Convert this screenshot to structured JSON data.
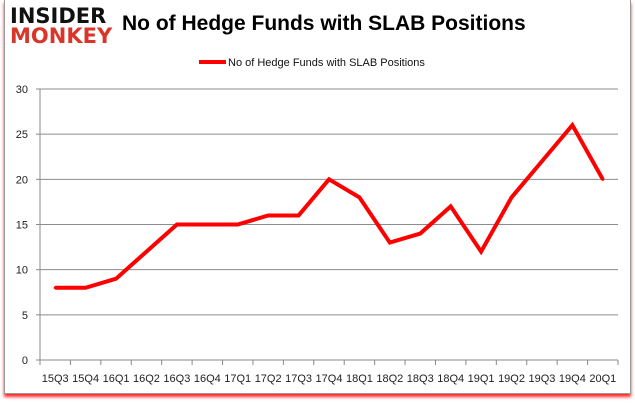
{
  "logo": {
    "line1": "INSIDER",
    "line2": "MONKEY"
  },
  "chart_data": {
    "type": "line",
    "title": "No of Hedge Funds with SLAB Positions",
    "categories": [
      "15Q3",
      "15Q4",
      "16Q1",
      "16Q2",
      "16Q3",
      "16Q4",
      "17Q1",
      "17Q2",
      "17Q3",
      "17Q4",
      "18Q1",
      "18Q2",
      "18Q3",
      "18Q4",
      "19Q1",
      "19Q2",
      "19Q3",
      "19Q4",
      "20Q1"
    ],
    "series": [
      {
        "name": "No of Hedge Funds with SLAB Positions",
        "values": [
          8,
          8,
          9,
          12,
          15,
          15,
          15,
          16,
          16,
          20,
          18,
          13,
          14,
          17,
          12,
          18,
          22,
          26,
          20
        ],
        "color": "#ff0000"
      }
    ],
    "ylim": [
      0,
      30
    ],
    "yticks": [
      0,
      5,
      10,
      15,
      20,
      25,
      30
    ],
    "grid": true,
    "legend": "top-center",
    "xlabel": "",
    "ylabel": ""
  }
}
